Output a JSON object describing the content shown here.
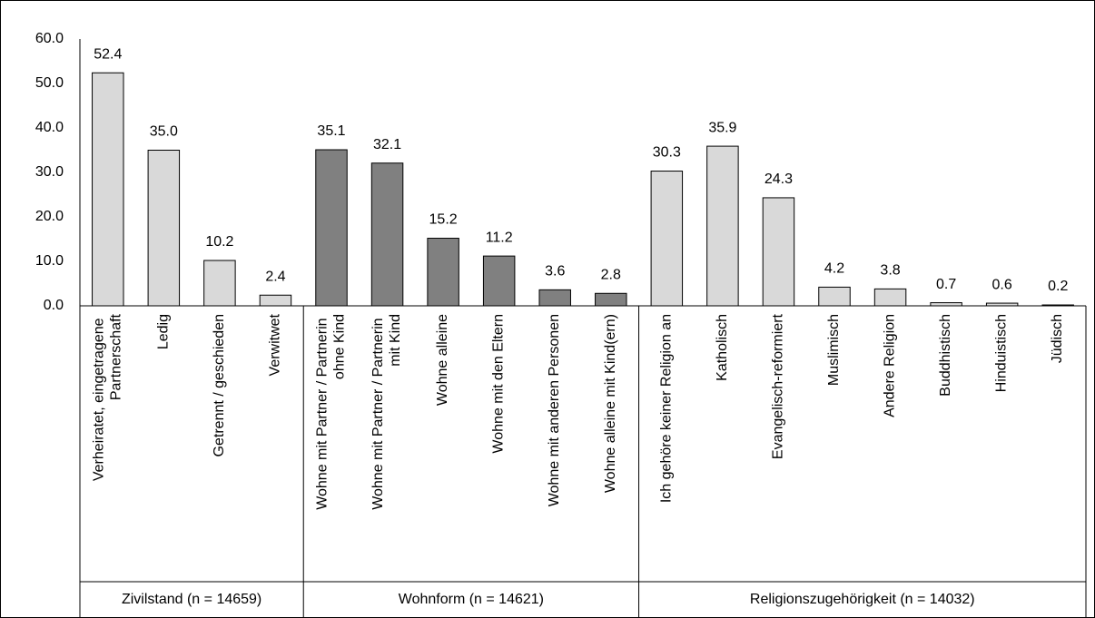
{
  "chart_data": {
    "type": "bar",
    "groups": [
      {
        "name": "Zivilstand (n = 14659)",
        "color": "#d9d9d9",
        "categories": [
          "Verheiratet, eingetragene Partnerschaft",
          "Ledig",
          "Getrennt / geschieden",
          "Verwitwet"
        ],
        "values": [
          52.4,
          35.0,
          10.2,
          2.4
        ],
        "value_labels": [
          "52.4",
          "35.0",
          "10.2",
          "2.4"
        ]
      },
      {
        "name": "Wohnform (n = 14621)",
        "color": "#808080",
        "categories": [
          "Wohne mit Partner / Partnerin ohne Kind",
          "Wohne mit Partner / Partnerin mit Kind",
          "Wohne alleine",
          "Wohne mit den Eltern",
          "Wohne mit anderen Personen",
          "Wohne alleine mit Kind(ern)"
        ],
        "values": [
          35.1,
          32.1,
          15.2,
          11.2,
          3.6,
          2.8
        ],
        "value_labels": [
          "35.1",
          "32.1",
          "15.2",
          "11.2",
          "3.6",
          "2.8"
        ]
      },
      {
        "name": "Religionszugehörigkeit (n = 14032)",
        "color": "#d9d9d9",
        "categories": [
          "Ich gehöre keiner Religion an",
          "Katholisch",
          "Evangelisch-reformiert",
          "Muslimisch",
          "Andere Religion",
          "Buddhistisch",
          "Hinduistisch",
          "Jüdisch"
        ],
        "values": [
          30.3,
          35.9,
          24.3,
          4.2,
          3.8,
          0.7,
          0.6,
          0.2
        ],
        "value_labels": [
          "30.3",
          "35.9",
          "24.3",
          "4.2",
          "3.8",
          "0.7",
          "0.6",
          "0.2"
        ]
      }
    ],
    "ylim": [
      0,
      60
    ],
    "yticks": [
      {
        "value": 0,
        "label": "0.0"
      },
      {
        "value": 10,
        "label": "10.0"
      },
      {
        "value": 20,
        "label": "20.0"
      },
      {
        "value": 30,
        "label": "30.0"
      },
      {
        "value": 40,
        "label": "40.0"
      },
      {
        "value": 50,
        "label": "50.0"
      },
      {
        "value": 60,
        "label": "60.0"
      }
    ]
  }
}
